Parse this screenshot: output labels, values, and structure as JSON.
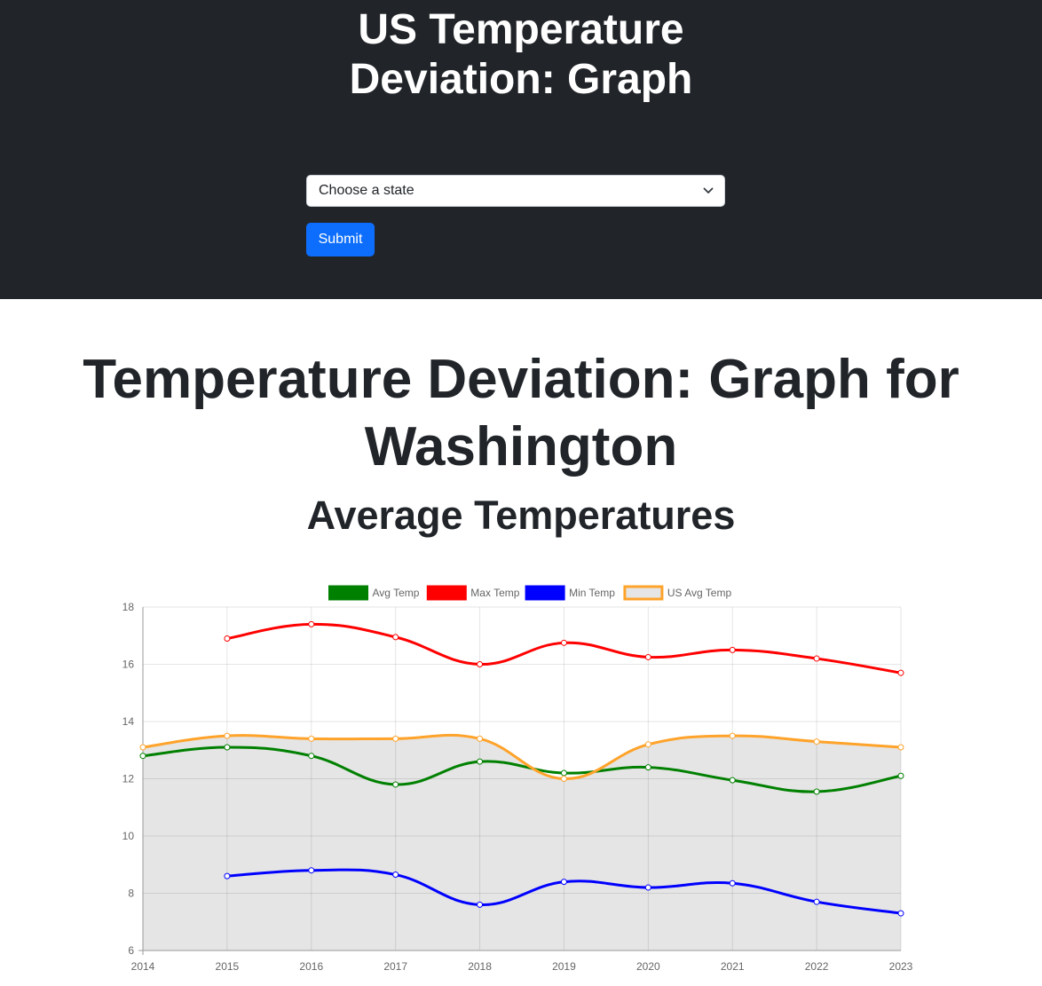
{
  "header": {
    "title_line1": "US Temperature",
    "title_line2": "Deviation: Graph",
    "select": {
      "selected": "Choose a state",
      "icon": "chevron-down-icon"
    },
    "submit_label": "Submit",
    "background": "#212529",
    "button_color": "#0d6efd"
  },
  "main": {
    "title_line1": "Temperature Deviation: Graph for",
    "title_line2": "Washington",
    "subtitle": "Average Temperatures"
  },
  "chart_data": {
    "type": "line",
    "title": "",
    "xlabel": "",
    "ylabel": "",
    "x": [
      2014,
      2015,
      2016,
      2017,
      2018,
      2019,
      2020,
      2021,
      2022,
      2023
    ],
    "ylim": [
      6,
      18
    ],
    "yticks": [
      6,
      8,
      10,
      12,
      14,
      16,
      18
    ],
    "grid": true,
    "legend": "top-center",
    "series": [
      {
        "name": "Avg Temp",
        "color": "#008000",
        "fill": false,
        "values": [
          12.8,
          13.1,
          12.8,
          11.8,
          12.6,
          12.2,
          12.4,
          11.95,
          11.55,
          12.1
        ]
      },
      {
        "name": "Max Temp",
        "color": "#ff0000",
        "fill": false,
        "values": [
          null,
          16.9,
          17.4,
          16.95,
          16.0,
          16.75,
          16.25,
          16.5,
          16.2,
          15.7
        ]
      },
      {
        "name": "Min Temp",
        "color": "#0000ff",
        "fill": false,
        "values": [
          null,
          8.6,
          8.8,
          8.65,
          7.6,
          8.4,
          8.2,
          8.35,
          7.7,
          7.3
        ]
      },
      {
        "name": "US Avg Temp",
        "color": "#ffa32a",
        "fill": true,
        "fill_color": "#e5e5e5",
        "values": [
          13.1,
          13.5,
          13.4,
          13.4,
          13.4,
          12.0,
          13.2,
          13.5,
          13.3,
          13.1
        ]
      }
    ]
  }
}
